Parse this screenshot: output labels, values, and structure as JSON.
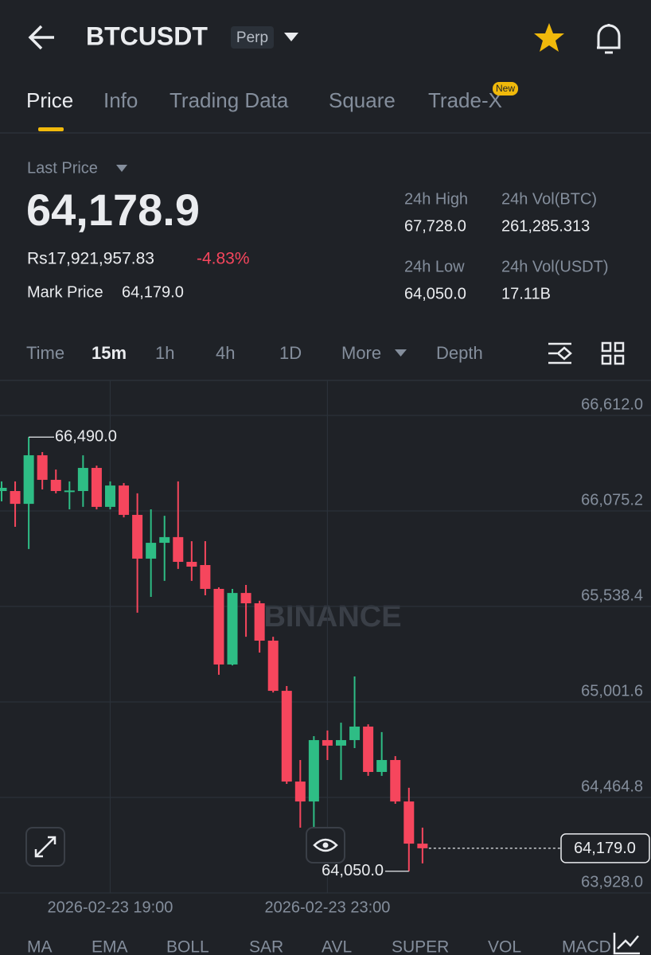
{
  "header": {
    "symbol": "BTCUSDT",
    "badge": "Perp"
  },
  "tabs": [
    "Price",
    "Info",
    "Trading Data",
    "Square",
    "Trade-X"
  ],
  "new_badge": "New",
  "ticker": {
    "last_price_label": "Last Price",
    "last_price": "64,178.9",
    "local_price": "Rs17,921,957.83",
    "change": "-4.83%",
    "mark_price_label": "Mark Price",
    "mark_price": "64,179.0",
    "stats": [
      {
        "label": "24h High",
        "value": "67,728.0"
      },
      {
        "label": "24h Vol(BTC)",
        "value": "261,285.313"
      },
      {
        "label": "24h Low",
        "value": "64,050.0"
      },
      {
        "label": "24h Vol(USDT)",
        "value": "17.11B"
      }
    ]
  },
  "intervals": [
    "Time",
    "15m",
    "1h",
    "4h",
    "1D",
    "More",
    "Depth"
  ],
  "indicators": [
    "MA",
    "EMA",
    "BOLL",
    "SAR",
    "AVL",
    "SUPER",
    "VOL",
    "MACD"
  ],
  "chart_data": {
    "type": "candlestick",
    "watermark": "BINANCE",
    "up_color": "#2ebd85",
    "down_color": "#f6465d",
    "grid": true,
    "categories": [
      null,
      null,
      null,
      null,
      null,
      null,
      null,
      null,
      "2026-02-23 19:00",
      null,
      null,
      null,
      null,
      null,
      null,
      null,
      null,
      null,
      null,
      null,
      null,
      null,
      null,
      null,
      "2026-02-23 23:00",
      null,
      null,
      null,
      null,
      null,
      null,
      null
    ],
    "open": [
      66187,
      66187,
      66115,
      66388,
      66250,
      66187,
      66187,
      66317,
      66098,
      66218,
      66053,
      65807,
      65896,
      65928,
      65789,
      65771,
      65637,
      65212,
      65614,
      65556,
      65346,
      65064,
      64554,
      64442,
      64787,
      64756,
      64787,
      64863,
      64608,
      64675,
      64442,
      64205
    ],
    "high": [
      66241,
      66241,
      66490,
      66406,
      66308,
      66241,
      66388,
      66330,
      66241,
      66232,
      66174,
      66084,
      66048,
      66241,
      65905,
      65905,
      65646,
      65637,
      65659,
      65570,
      65368,
      65091,
      64675,
      64809,
      64841,
      64885,
      65145,
      64876,
      64832,
      64697,
      64519,
      64295
    ],
    "low": [
      66129,
      65986,
      65861,
      66196,
      66174,
      66084,
      66098,
      66084,
      66084,
      66039,
      65503,
      65592,
      65682,
      65749,
      65682,
      65601,
      65154,
      65207,
      65368,
      65279,
      65055,
      64541,
      64295,
      64295,
      64675,
      64563,
      64742,
      64586,
      64586,
      64429,
      64050,
      64094
    ],
    "close": [
      66205,
      66115,
      66388,
      66250,
      66187,
      66190,
      66317,
      66098,
      66218,
      66053,
      65807,
      65896,
      65928,
      65789,
      65762,
      65637,
      65212,
      65614,
      65556,
      65346,
      65064,
      64554,
      64442,
      64787,
      64756,
      64787,
      64863,
      64608,
      64675,
      64442,
      64205,
      64179
    ],
    "ylim": [
      63928,
      66612
    ],
    "yticks": [
      {
        "value": 63928,
        "label": "63,928.0"
      },
      {
        "value": 64464.8,
        "label": "64,464.8"
      },
      {
        "value": 65001.6,
        "label": "65,001.6"
      },
      {
        "value": 65538.4,
        "label": "65,538.4"
      },
      {
        "value": 66075.2,
        "label": "66,075.2"
      },
      {
        "value": 66612,
        "label": "66,612.0"
      }
    ],
    "max_label": {
      "value": 66490,
      "label": "66,490.0"
    },
    "min_label": {
      "value": 64050,
      "label": "64,050.0"
    },
    "last_label": {
      "value": 64179,
      "label": "64,179.0"
    }
  }
}
